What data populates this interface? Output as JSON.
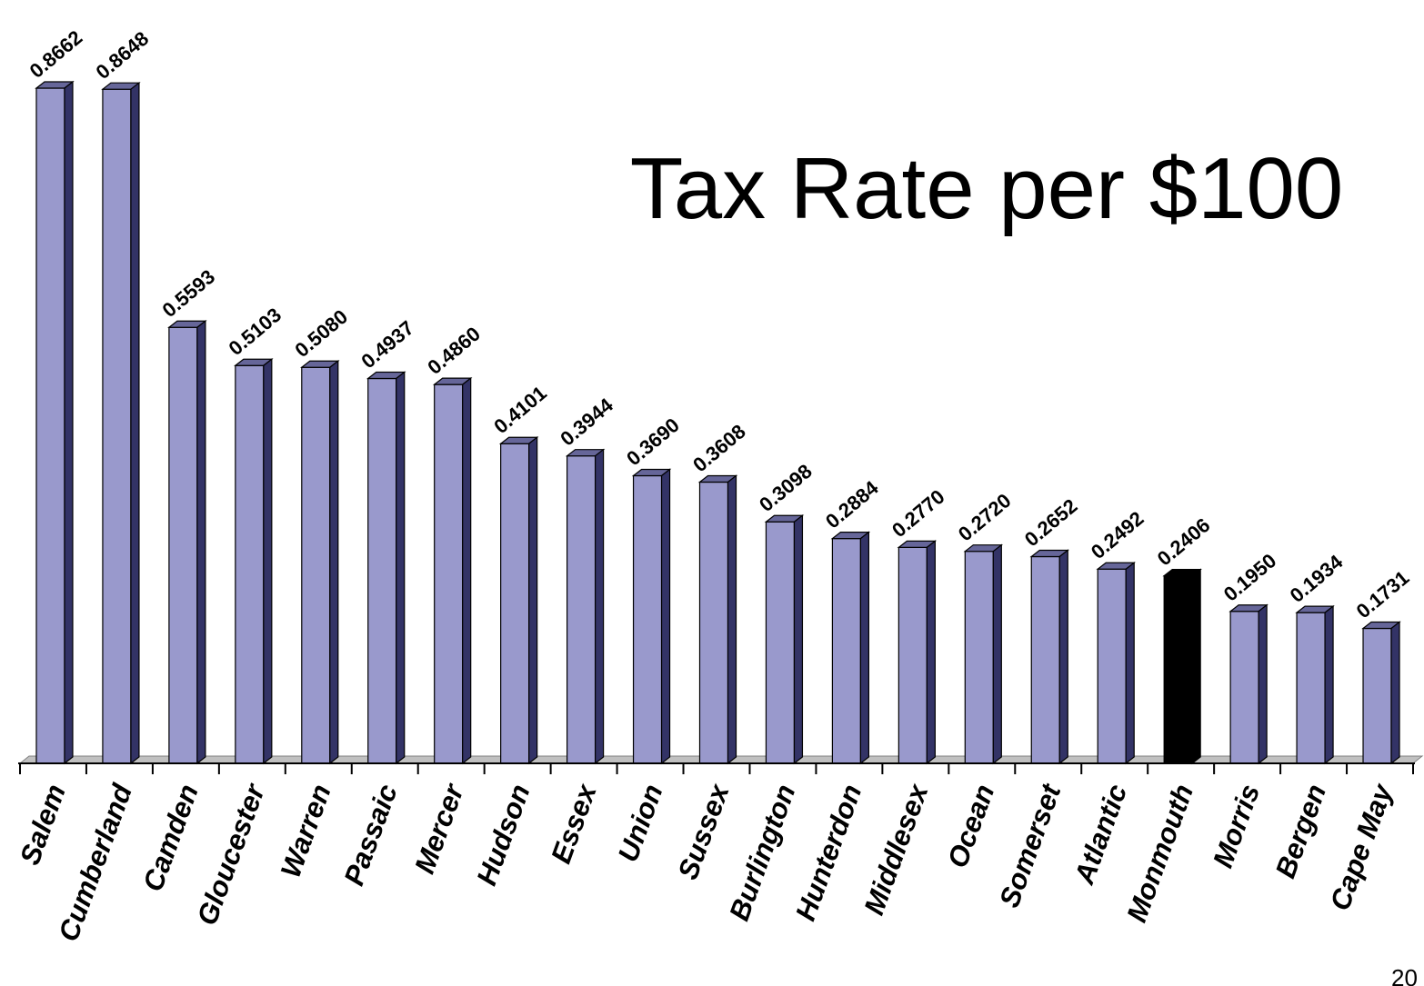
{
  "chart_data": {
    "type": "bar",
    "title": "Tax Rate per $100",
    "xlabel": "",
    "ylabel": "",
    "ylim": [
      0,
      0.8662
    ],
    "grid": false,
    "legend": "none",
    "categories": [
      "Salem",
      "Cumberland",
      "Camden",
      "Gloucester",
      "Warren",
      "Passaic",
      "Mercer",
      "Hudson",
      "Essex",
      "Union",
      "Sussex",
      "Burlington",
      "Hunterdon",
      "Middlesex",
      "Ocean",
      "Somerset",
      "Atlantic",
      "Monmouth",
      "Morris",
      "Bergen",
      "Cape May"
    ],
    "values": [
      0.8662,
      0.8648,
      0.5593,
      0.5103,
      0.508,
      0.4937,
      0.486,
      0.4101,
      0.3944,
      0.369,
      0.3608,
      0.3098,
      0.2884,
      0.277,
      0.272,
      0.2652,
      0.2492,
      0.2406,
      0.195,
      0.1934,
      0.1731
    ],
    "value_labels": [
      "0.8662",
      "0.8648",
      "0.5593",
      "0.5103",
      "0.5080",
      "0.4937",
      "0.4860",
      "0.4101",
      "0.3944",
      "0.3690",
      "0.3608",
      "0.3098",
      "0.2884",
      "0.2770",
      "0.2720",
      "0.2652",
      "0.2492",
      "0.2406",
      "0.1950",
      "0.1934",
      "0.1731"
    ],
    "highlight_category": "Monmouth",
    "colors": {
      "bar_front": "#9999cc",
      "bar_top": "#666699",
      "bar_side": "#333366",
      "highlight": "#000000",
      "floor": "#c0c0c0"
    }
  },
  "page_number": "20"
}
